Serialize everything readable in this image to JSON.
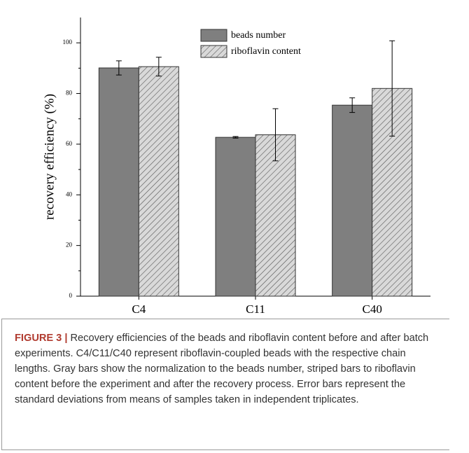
{
  "chart_data": {
    "type": "bar",
    "y_label": "recovery efficiency (%)",
    "categories": [
      "C4",
      "C11",
      "C40"
    ],
    "series": [
      {
        "name": "beads number",
        "color": "#7f7f7f",
        "hatch": false,
        "values": [
          90.1,
          62.7,
          75.4
        ],
        "errors": [
          2.8,
          0.3,
          2.9
        ]
      },
      {
        "name": "riboflavin content",
        "color": "#d9d9d9",
        "hatch": true,
        "values": [
          90.6,
          63.7,
          82
        ],
        "errors": [
          3.7,
          10.3,
          18.8
        ]
      }
    ],
    "ylim": [
      0,
      110
    ],
    "yticks": [
      0,
      20,
      40,
      60,
      80,
      100
    ],
    "grid": false,
    "legend": "top-center"
  },
  "caption": {
    "label": "FIGURE 3 |",
    "text": "Recovery efficiencies of the beads and riboflavin content before and after batch experiments. C4/C11/C40 represent riboflavin-coupled beads with the respective chain lengths. Gray bars show the normalization to the beads number, striped bars to riboflavin content before the experiment and after the recovery process. Error bars represent the standard deviations from means of samples taken in independent triplicates."
  }
}
